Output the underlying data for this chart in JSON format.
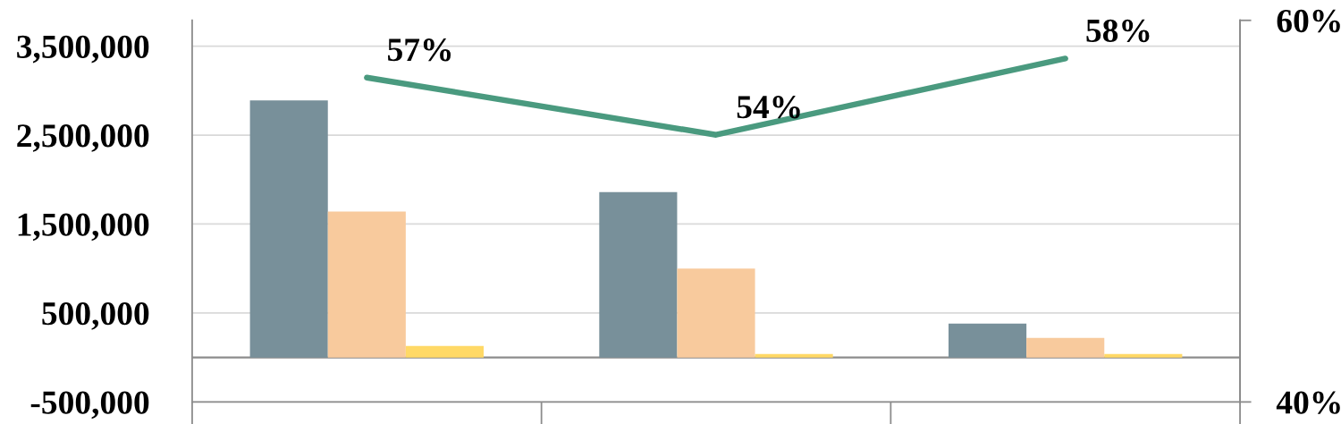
{
  "chart_data": {
    "type": "bar",
    "categories": [
      null,
      null,
      null
    ],
    "ylim": [
      -500000,
      3790000
    ],
    "yticks": [
      {
        "value": -500000,
        "label": "-500,000"
      },
      {
        "value": 500000,
        "label": "500,000"
      },
      {
        "value": 1500000,
        "label": "1,500,000"
      },
      {
        "value": 2500000,
        "label": "2,500,000"
      },
      {
        "value": 3500000,
        "label": "3,500,000"
      }
    ],
    "y2lim": [
      40,
      60
    ],
    "y2ticks": [
      {
        "value": 40,
        "label": "40%"
      },
      {
        "value": 60,
        "label": "60%"
      }
    ],
    "grid": "y",
    "series": [
      {
        "color": "#78909a",
        "values": [
          2890000,
          1860000,
          380000
        ]
      },
      {
        "color": "#f8ca9d",
        "values": [
          1640000,
          1000000,
          220000
        ]
      },
      {
        "color": "#ffd966",
        "values": [
          130000,
          40000,
          40000
        ]
      },
      {
        "type": "line",
        "axis": "y2",
        "color": "#4a9a7f",
        "values": [
          57,
          54,
          58
        ],
        "value_labels": [
          "57%",
          "54%",
          "58%"
        ]
      }
    ],
    "ref_lines": [
      {
        "axis": "y",
        "value": 0,
        "color": "#8c8c8c"
      }
    ]
  }
}
